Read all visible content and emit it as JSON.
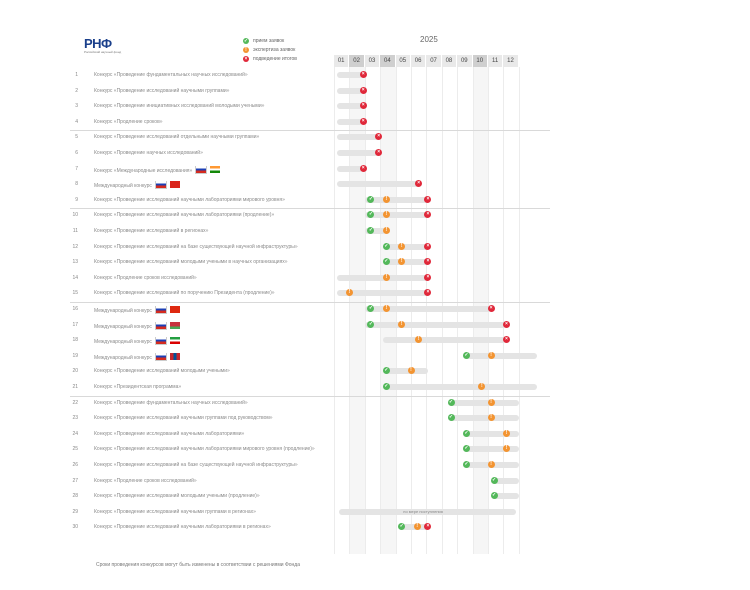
{
  "header": {
    "logo_text": "РНФ",
    "logo_subtitle": "Российский научный фонд",
    "year": "2025"
  },
  "legend": [
    {
      "color": "green",
      "symbol": "✓",
      "label": "прием заявок"
    },
    {
      "color": "orange",
      "symbol": "!",
      "label": "экспертиза заявок"
    },
    {
      "color": "red",
      "symbol": "×",
      "label": "подведение итогов"
    }
  ],
  "months": [
    "01",
    "02",
    "03",
    "04",
    "05",
    "06",
    "07",
    "08",
    "09",
    "10",
    "11",
    "12"
  ],
  "rows": [
    {
      "num": "1",
      "name": "Конкурс «Проведение фундаментальных научных исследований»",
      "flags": []
    },
    {
      "num": "2",
      "name": "Конкурс «Проведение исследований научными группами»",
      "flags": []
    },
    {
      "num": "3",
      "name": "Конкурс «Проведение инициативных исследований молодыми учеными»",
      "flags": []
    },
    {
      "num": "4",
      "name": "Конкурс «Продление сроков»",
      "flags": []
    },
    {
      "num": "5",
      "name": "Конкурс «Проведение исследований отдельными научными группами»",
      "flags": []
    },
    {
      "num": "6",
      "name": "Конкурс «Проведение научных исследований»",
      "flags": []
    },
    {
      "num": "7",
      "name": "Конкурс «Международные исследования»",
      "flags": [
        "ru",
        "in"
      ]
    },
    {
      "num": "8",
      "name": "Международный конкурс",
      "flags": [
        "ru",
        "vn"
      ]
    },
    {
      "num": "9",
      "name": "Конкурс «Проведение исследований научными лабораториями мирового уровня»",
      "flags": []
    },
    {
      "num": "10",
      "name": "Конкурс «Проведение исследований научными лабораториями (продление)»",
      "flags": []
    },
    {
      "num": "11",
      "name": "Конкурс «Проведение исследований в регионах»",
      "flags": []
    },
    {
      "num": "12",
      "name": "Конкурс «Проведение исследований на базе существующей научной инфраструктуры»",
      "flags": []
    },
    {
      "num": "13",
      "name": "Конкурс «Проведение исследований молодыми учеными в научных организациях»",
      "flags": []
    },
    {
      "num": "14",
      "name": "Конкурс «Продление сроков исследований»",
      "flags": []
    },
    {
      "num": "15",
      "name": "Конкурс «Проведение исследований по поручению Президента (продление)»",
      "flags": []
    },
    {
      "num": "16",
      "name": "Международный конкурс",
      "flags": [
        "ru",
        "cn"
      ]
    },
    {
      "num": "17",
      "name": "Международный конкурс",
      "flags": [
        "ru",
        "by"
      ]
    },
    {
      "num": "18",
      "name": "Международный конкурс",
      "flags": [
        "ru",
        "ir"
      ]
    },
    {
      "num": "19",
      "name": "Международный конкурс",
      "flags": [
        "ru",
        "mn"
      ]
    },
    {
      "num": "20",
      "name": "Конкурс «Проведение исследований молодыми учеными»",
      "flags": []
    },
    {
      "num": "21",
      "name": "Конкурс «Президентская программа»",
      "flags": []
    },
    {
      "num": "22",
      "name": "Конкурс «Проведение фундаментальных научных исследований»",
      "flags": []
    },
    {
      "num": "23",
      "name": "Конкурс «Проведение исследований научными группами под руководством»",
      "flags": []
    },
    {
      "num": "24",
      "name": "Конкурс «Проведение исследований научными лабораториями»",
      "flags": []
    },
    {
      "num": "25",
      "name": "Конкурс «Проведение исследований научными лабораториями мирового уровня (продление)»",
      "flags": []
    },
    {
      "num": "26",
      "name": "Конкурс «Проведение исследований на базе существующей научной инфраструктуры»",
      "flags": []
    },
    {
      "num": "27",
      "name": "Конкурс «Продление сроков исследований»",
      "flags": []
    },
    {
      "num": "28",
      "name": "Конкурс «Проведение исследований молодыми учеными (продление)»",
      "flags": []
    },
    {
      "num": "29",
      "name": "Конкурс «Проведение исследований научными группами в регионах»",
      "flags": [],
      "note": "по мере поступления"
    },
    {
      "num": "30",
      "name": "Конкурс «Проведение исследований научными лабораториями в регионах»",
      "flags": []
    }
  ],
  "footnote": "Сроки проведения конкурсов могут быть изменены в соответствии с решениями Фонда"
}
